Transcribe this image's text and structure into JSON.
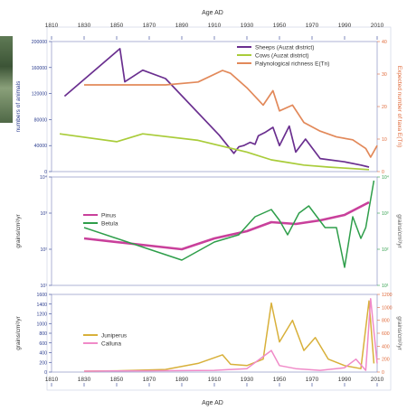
{
  "figure": {
    "top_axis_label": "Age AD",
    "bottom_axis_label": "Age AD",
    "x_ticks": [
      1810,
      1830,
      1850,
      1870,
      1890,
      1910,
      1930,
      1950,
      1970,
      1990,
      2010
    ],
    "x_range": [
      1810,
      2010
    ],
    "colors": {
      "sheep": "#6a2f8f",
      "cows": "#a9cc3a",
      "richness": "#e2895a",
      "pinus": "#c9409b",
      "betula": "#2e9e4a",
      "juniperus": "#d8b03a",
      "calluna": "#f08ac8",
      "axis": "#2b3d8f",
      "axis_right": "#e06a3a"
    }
  },
  "chart_data": [
    {
      "type": "line",
      "title": "",
      "ylabel": "numbers of animals",
      "ylabel_right": "Expected number of taxa E(Tn)",
      "ylim": [
        0,
        200000
      ],
      "y_ticks": [
        "0",
        "40000",
        "80000",
        "120000",
        "160000",
        "200000"
      ],
      "ylim_right": [
        0,
        45
      ],
      "y_ticks_right": [
        "0",
        "10",
        "20",
        "30",
        "40"
      ],
      "legend_position": "top-right",
      "series": [
        {
          "name": "Sheeps (Auzat district)",
          "axis": "left",
          "x": [
            1818,
            1852,
            1855,
            1866,
            1880,
            1913,
            1922,
            1925,
            1928,
            1932,
            1935,
            1937,
            1941,
            1946,
            1950,
            1956,
            1960,
            1966,
            1975,
            1990,
            2000,
            2005
          ],
          "y": [
            116000,
            189000,
            138000,
            156000,
            143000,
            56000,
            28000,
            38000,
            40000,
            45000,
            42000,
            55000,
            60000,
            68000,
            40000,
            70000,
            30000,
            50000,
            20000,
            15000,
            10000,
            7000
          ]
        },
        {
          "name": "Cows (Auzat district)",
          "axis": "left",
          "x": [
            1815,
            1850,
            1866,
            1900,
            1930,
            1945,
            1955,
            1965,
            1980,
            2005
          ],
          "y": [
            58000,
            46000,
            58000,
            48000,
            30000,
            18000,
            14000,
            10000,
            7000,
            3000
          ]
        },
        {
          "name": "Palynological richness E(Tn)",
          "axis": "right",
          "x": [
            1830,
            1880,
            1900,
            1915,
            1920,
            1930,
            1940,
            1946,
            1950,
            1958,
            1965,
            1975,
            1985,
            1995,
            2003,
            2006,
            2010
          ],
          "y": [
            30,
            30,
            31,
            35,
            34,
            29,
            23,
            28,
            21,
            23,
            17,
            14,
            12,
            11,
            8,
            5,
            9
          ]
        }
      ]
    },
    {
      "type": "line",
      "title": "",
      "ylabel": "grains/cm²/yr",
      "ylabel_right": "grains/cm²/yr",
      "y_ticks": [
        "10⁴",
        "10³",
        "10²",
        "10¹"
      ],
      "y_ticks_right": [
        "10⁴",
        "10³",
        "10²",
        "10¹"
      ],
      "legend_position": "left",
      "series": [
        {
          "name": "Pinus",
          "x": [
            1830,
            1870,
            1890,
            1910,
            1930,
            1945,
            1960,
            1975,
            1990,
            2005
          ],
          "y": [
            2.3,
            2.1,
            2.0,
            2.3,
            2.5,
            2.75,
            2.7,
            2.8,
            2.95,
            3.3
          ]
        },
        {
          "name": "Betula",
          "x": [
            1830,
            1870,
            1890,
            1910,
            1925,
            1935,
            1945,
            1950,
            1955,
            1962,
            1968,
            1978,
            1985,
            1990,
            1995,
            2000,
            2003,
            2008
          ],
          "y": [
            2.6,
            2.0,
            1.7,
            2.2,
            2.4,
            2.9,
            3.1,
            2.8,
            2.4,
            3.0,
            3.2,
            2.6,
            2.6,
            1.5,
            2.9,
            2.3,
            2.6,
            3.9
          ]
        }
      ]
    },
    {
      "type": "line",
      "title": "",
      "ylabel": "grains/cm²/yr",
      "ylabel_right": "grains/cm²/yr",
      "ylim": [
        0,
        1800
      ],
      "y_ticks": [
        "0",
        "200",
        "400",
        "600",
        "800",
        "1000",
        "1200",
        "1400",
        "1600"
      ],
      "ylim_right": [
        0,
        1800
      ],
      "y_ticks_right": [
        "0",
        "200",
        "400",
        "600",
        "800",
        "1000",
        "1200"
      ],
      "legend_position": "left",
      "series": [
        {
          "name": "Juniperus",
          "axis": "left",
          "x": [
            1830,
            1850,
            1880,
            1900,
            1915,
            1920,
            1930,
            1940,
            1945,
            1950,
            1958,
            1965,
            1972,
            1980,
            1990,
            2000,
            2005,
            2008
          ],
          "y": [
            20,
            30,
            60,
            200,
            400,
            180,
            150,
            300,
            1600,
            700,
            1200,
            500,
            800,
            300,
            150,
            80,
            1650,
            200
          ]
        },
        {
          "name": "Calluna",
          "axis": "right",
          "x": [
            1830,
            1870,
            1910,
            1930,
            1945,
            1950,
            1960,
            1975,
            1990,
            1997,
            2003,
            2006,
            2010
          ],
          "y": [
            20,
            30,
            40,
            80,
            500,
            150,
            80,
            40,
            100,
            300,
            40,
            1700,
            200
          ]
        }
      ]
    }
  ]
}
